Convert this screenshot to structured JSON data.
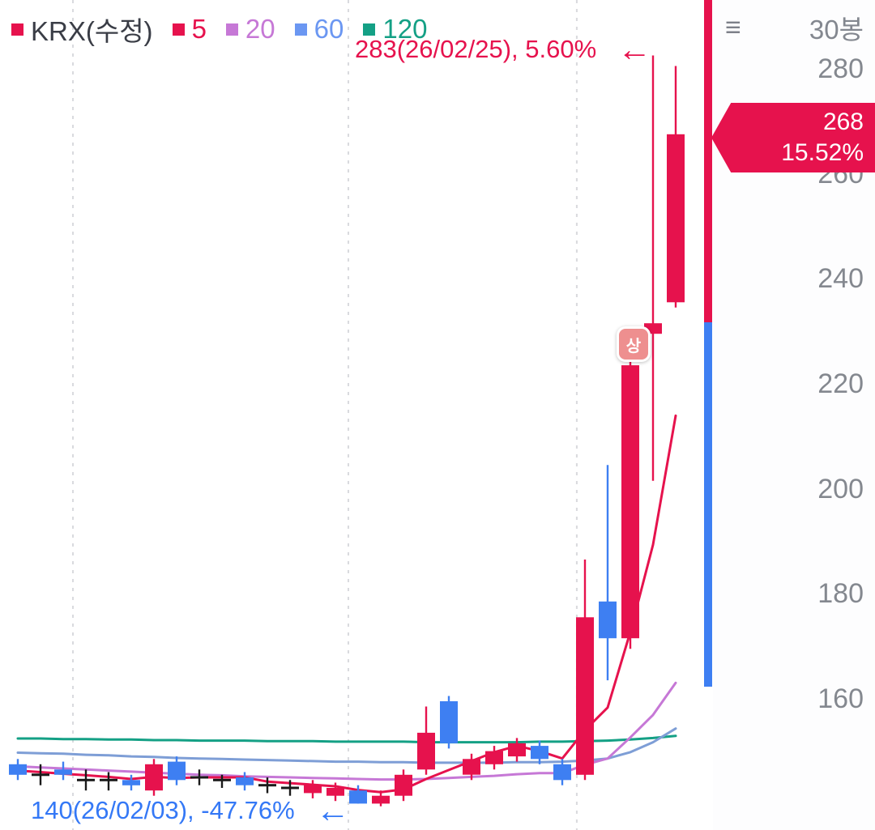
{
  "legend": {
    "series": [
      {
        "label": "KRX(수정)",
        "swatch": "#e6124d",
        "text_color": "#3a3d46"
      },
      {
        "label": "5",
        "swatch": "#e6124d",
        "text_color": "#e6124d"
      },
      {
        "label": "20",
        "swatch": "#c678d6",
        "text_color": "#c678d6"
      },
      {
        "label": "60",
        "swatch": "#6b97f2",
        "text_color": "#6b97f2"
      },
      {
        "label": "120",
        "swatch": "#14a085",
        "text_color": "#14a085"
      }
    ]
  },
  "annotations": {
    "high": {
      "text": "283(26/02/25), 5.60%",
      "arrow": "←",
      "color": "#e6124d"
    },
    "low": {
      "text": "140(26/02/03), -47.76%",
      "arrow": "←",
      "color": "#3478f6"
    }
  },
  "price_tag": {
    "price": "268",
    "change": "15.52%",
    "bg": "#e6124d"
  },
  "axis": {
    "menu_icon": "≡",
    "bars_label": "30봉",
    "ticks": [
      280,
      260,
      240,
      220,
      200,
      180,
      160
    ]
  },
  "limit_marker": {
    "label": "상",
    "bar_index": 27
  },
  "range_bar": {
    "top_color": "#e6124d",
    "bottom_color": "#3e7ff2"
  },
  "chart_data": {
    "type": "candlestick",
    "bar_count": 30,
    "ylim": [
      135,
      290
    ],
    "y_ticks": [
      280,
      260,
      240,
      220,
      200,
      180,
      160
    ],
    "up_color": "#e6124d",
    "down_color": "#3e7ff2",
    "doji_color": "#1a1a1a",
    "gridlines": [
      2.43,
      14.57,
      24.64
    ],
    "candles": [
      [
        148,
        149,
        145,
        146
      ],
      [
        146,
        148,
        144,
        146
      ],
      [
        147,
        148.5,
        145,
        146
      ],
      [
        145,
        147,
        143,
        145
      ],
      [
        145,
        146.5,
        143,
        145
      ],
      [
        145,
        146,
        143,
        144
      ],
      [
        143,
        149,
        142,
        148
      ],
      [
        148.5,
        149.5,
        144,
        145
      ],
      [
        145.5,
        147,
        144,
        145.5
      ],
      [
        145,
        146,
        143.5,
        145
      ],
      [
        145.5,
        146.5,
        143,
        144
      ],
      [
        144,
        145.5,
        142.5,
        144
      ],
      [
        143.5,
        145,
        142,
        143.5
      ],
      [
        142.5,
        145,
        141.5,
        144
      ],
      [
        142,
        144.5,
        141,
        143.5
      ],
      [
        143,
        144,
        140.5,
        140.5
      ],
      [
        140.5,
        143,
        140,
        142
      ],
      [
        142,
        147,
        141,
        146
      ],
      [
        147,
        159,
        146,
        154
      ],
      [
        160,
        161,
        151,
        152
      ],
      [
        146,
        150,
        145,
        149
      ],
      [
        148,
        151.5,
        147,
        150.5
      ],
      [
        149.5,
        153,
        148.5,
        152
      ],
      [
        151.5,
        152.5,
        148,
        149
      ],
      [
        148,
        149,
        144,
        145
      ],
      [
        146,
        187,
        145,
        176
      ],
      [
        179,
        205,
        164,
        172
      ],
      [
        172,
        225,
        170,
        224
      ],
      [
        230,
        283,
        202,
        232
      ],
      [
        236,
        281,
        235,
        268
      ]
    ],
    "ma": [
      {
        "period": 120,
        "color": "#14a085",
        "values": [
          152.9,
          152.9,
          152.8,
          152.8,
          152.7,
          152.7,
          152.6,
          152.6,
          152.5,
          152.5,
          152.5,
          152.4,
          152.4,
          152.4,
          152.3,
          152.3,
          152.3,
          152.3,
          152.2,
          152.2,
          152.2,
          152.2,
          152.2,
          152.3,
          152.3,
          152.4,
          152.5,
          152.7,
          153.0,
          153.4
        ]
      },
      {
        "period": 60,
        "color": "#7e9ed6",
        "values": [
          150.2,
          150.1,
          150.0,
          149.8,
          149.7,
          149.5,
          149.4,
          149.2,
          149.1,
          149.0,
          148.9,
          148.8,
          148.7,
          148.6,
          148.5,
          148.5,
          148.4,
          148.4,
          148.3,
          148.3,
          148.3,
          148.3,
          148.4,
          148.4,
          148.5,
          148.7,
          149.1,
          150.3,
          152.2,
          154.8
        ]
      },
      {
        "period": 20,
        "color": "#c678d6",
        "values": [
          147.6,
          147.4,
          147.2,
          147.0,
          146.8,
          146.6,
          146.4,
          146.2,
          146.0,
          145.9,
          145.7,
          145.6,
          145.5,
          145.4,
          145.3,
          145.2,
          145.1,
          145.1,
          145.2,
          145.4,
          145.6,
          145.8,
          146.1,
          146.3,
          146.3,
          147.9,
          149.1,
          153.1,
          157.4,
          163.5
        ]
      },
      {
        "period": 5,
        "color": "#e6124d",
        "values": [
          146.8,
          146.5,
          146.2,
          145.9,
          145.6,
          145.2,
          145.6,
          145.4,
          145.5,
          145.5,
          145.5,
          144.7,
          144.4,
          144.1,
          143.8,
          143.1,
          142.7,
          143.2,
          145.2,
          146.9,
          148.6,
          150.3,
          151.5,
          150.5,
          149.1,
          154.5,
          158.8,
          173.2,
          189.8,
          214.4
        ]
      }
    ]
  }
}
